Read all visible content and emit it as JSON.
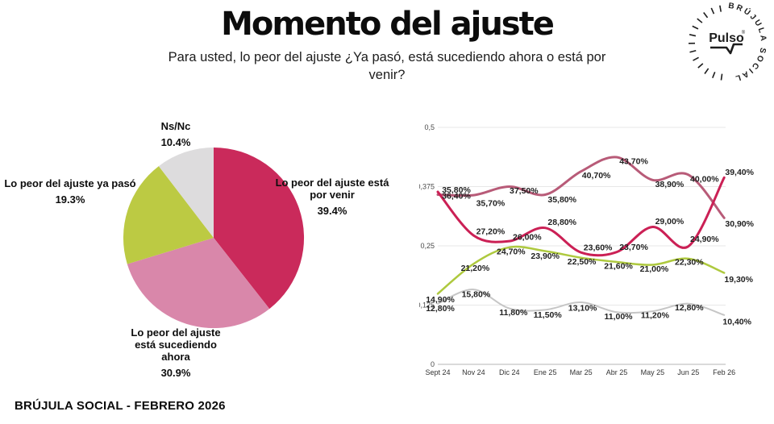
{
  "header": {
    "title": "Momento del ajuste",
    "subtitle": "Para usted, lo peor del ajuste ¿Ya pasó, está sucediendo ahora o está por venir?"
  },
  "logo": {
    "brand": "Pulso",
    "reg": "®",
    "ring_text": "BRÚJULA SOCIAL"
  },
  "footer": {
    "text": "BRÚJULA SOCIAL - FEBRERO 2026"
  },
  "chart_data": [
    {
      "type": "pie",
      "title": "Momento del ajuste",
      "start_angle_deg_from_top": 0,
      "direction": "clockwise",
      "slices": [
        {
          "label": "Lo peor del ajuste está por venir",
          "value": 39.4,
          "display": "39.4%",
          "color": "#ca2a5b"
        },
        {
          "label": "Lo peor del ajuste está sucediendo ahora",
          "value": 30.9,
          "display": "30.9%",
          "color": "#d987aa"
        },
        {
          "label": "Lo peor del ajuste ya pasó",
          "value": 19.3,
          "display": "19.3%",
          "color": "#bcca43"
        },
        {
          "label": "Ns/Nc",
          "value": 10.4,
          "display": "10.4%",
          "color": "#dddcdd"
        }
      ]
    },
    {
      "type": "line",
      "x": [
        "Sept 24",
        "Nov 24",
        "Dic 24",
        "Ene 25",
        "Mar 25",
        "Abr 25",
        "May 25",
        "Jun 25",
        "Feb 26"
      ],
      "ylim": [
        0,
        0.5
      ],
      "yticks": [
        {
          "v": 0.5,
          "label": "0,5"
        },
        {
          "v": 0.375,
          "label": "0,375"
        },
        {
          "v": 0.25,
          "label": "0,25"
        },
        {
          "v": 0.125,
          "label": "0,125"
        },
        {
          "v": 0,
          "label": "0"
        }
      ],
      "grid": true,
      "legend": "none",
      "value_label_format": "percent_comma_2dec",
      "series": [
        {
          "name": "Lo peor del ajuste está por venir",
          "color": "#cb2055",
          "values": [
            36.4,
            27.2,
            26.0,
            28.8,
            23.6,
            23.7,
            29.0,
            24.9,
            39.4
          ]
        },
        {
          "name": "Lo peor del ajuste está sucediendo ahora",
          "color": "#b85b78",
          "values": [
            35.8,
            35.7,
            37.5,
            35.8,
            40.7,
            43.7,
            38.9,
            40.0,
            30.9
          ]
        },
        {
          "name": "Lo peor del ajuste ya pasó",
          "color": "#aec93e",
          "values": [
            14.9,
            21.2,
            24.7,
            23.9,
            22.5,
            21.6,
            21.0,
            22.3,
            19.3
          ]
        },
        {
          "name": "Ns/Nc",
          "color": "#c6c6c6",
          "values": [
            12.8,
            15.8,
            11.8,
            11.5,
            13.1,
            11.0,
            11.2,
            12.8,
            10.4
          ]
        }
      ]
    }
  ]
}
